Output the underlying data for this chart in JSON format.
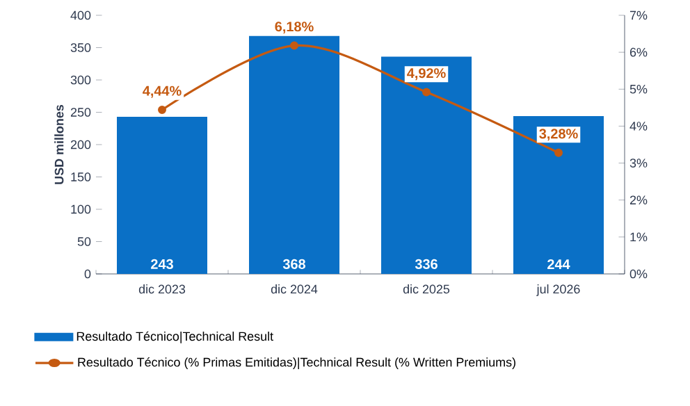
{
  "chart_data": {
    "type": "bar",
    "ylabel": "USD millones",
    "categories": [
      "dic 2023",
      "dic 2024",
      "dic 2025",
      "jul 2026"
    ],
    "series": [
      {
        "name": "Resultado Técnico|Technical Result",
        "color": "#0a70c6",
        "values": [
          243,
          368,
          336,
          244
        ],
        "value_labels": [
          "243",
          "368",
          "336",
          "244"
        ]
      },
      {
        "name": "Resultado Técnico (% Primas Emitidas)|Technical Result (% Written Premiums)",
        "type": "line",
        "axis": "y2",
        "color": "#c55a11",
        "values": [
          4.44,
          6.18,
          4.92,
          3.28
        ],
        "value_labels": [
          "4,44%",
          "6,18%",
          "4,92%",
          "3,28%"
        ]
      }
    ],
    "ylim": [
      0,
      400
    ],
    "yticks": [
      0,
      50,
      100,
      150,
      200,
      250,
      300,
      350,
      400
    ],
    "y2lim": [
      0,
      7
    ],
    "y2ticks": [
      {
        "value": 0,
        "label": "0%"
      },
      {
        "value": 1,
        "label": "1%"
      },
      {
        "value": 2,
        "label": "2%"
      },
      {
        "value": 3,
        "label": "3%"
      },
      {
        "value": 4,
        "label": "4%"
      },
      {
        "value": 5,
        "label": "5%"
      },
      {
        "value": 6,
        "label": "6%"
      },
      {
        "value": 7,
        "label": "7%"
      }
    ],
    "marker": "circle",
    "grid": false,
    "legend": "bottom"
  }
}
